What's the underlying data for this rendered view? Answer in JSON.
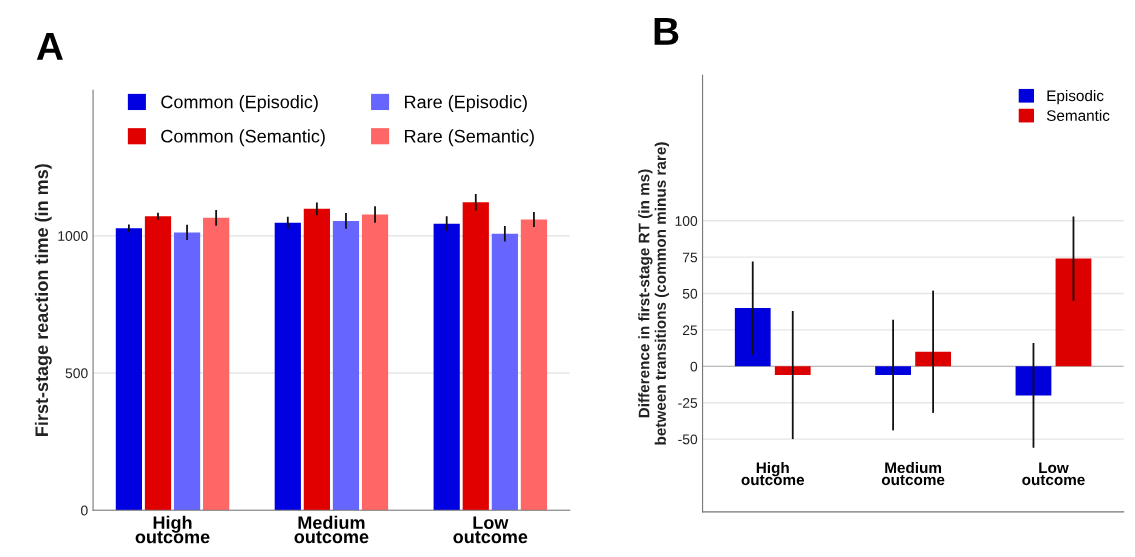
{
  "chart_data": [
    {
      "type": "bar",
      "title": "A",
      "ylabel": "First-stage reaction time (in ms)",
      "categories": [
        "High\noutcome",
        "Medium\noutcome",
        "Low\noutcome"
      ],
      "ylim": [
        0,
        1530
      ],
      "yticks": [
        0,
        500,
        1000
      ],
      "grid": "y",
      "legend": "top",
      "series": [
        {
          "name": "Common (Episodic)",
          "color": "#0000e0",
          "values": [
            1027,
            1047,
            1044
          ],
          "errors": [
            14,
            22,
            27
          ]
        },
        {
          "name": "Common (Semantic)",
          "color": "#e00000",
          "values": [
            1071,
            1098,
            1122
          ],
          "errors": [
            13,
            23,
            30
          ]
        },
        {
          "name": "Rare (Episodic)",
          "color": "#6666ff",
          "values": [
            1012,
            1054,
            1007
          ],
          "errors": [
            28,
            29,
            28
          ]
        },
        {
          "name": "Rare (Semantic)",
          "color": "#ff6666",
          "values": [
            1065,
            1077,
            1059
          ],
          "errors": [
            29,
            30,
            27
          ]
        }
      ]
    },
    {
      "type": "bar",
      "title": "B",
      "ylabel": "Difference in first-stage RT (in ms)\nbetween transitions (common minus rare)",
      "categories": [
        "High\noutcome",
        "Medium\noutcome",
        "Low\noutcome"
      ],
      "ylim": [
        -100,
        200
      ],
      "yticks": [
        -50,
        -25,
        0,
        25,
        50,
        75,
        100
      ],
      "grid": "y",
      "legend": "top right",
      "series": [
        {
          "name": "Episodic",
          "color": "#0000dd",
          "values": [
            40,
            -6,
            -20
          ],
          "errors": [
            32,
            38,
            36
          ]
        },
        {
          "name": "Semantic",
          "color": "#dd0000",
          "values": [
            -6,
            10,
            74
          ],
          "errors": [
            44,
            42,
            29
          ]
        }
      ]
    }
  ]
}
